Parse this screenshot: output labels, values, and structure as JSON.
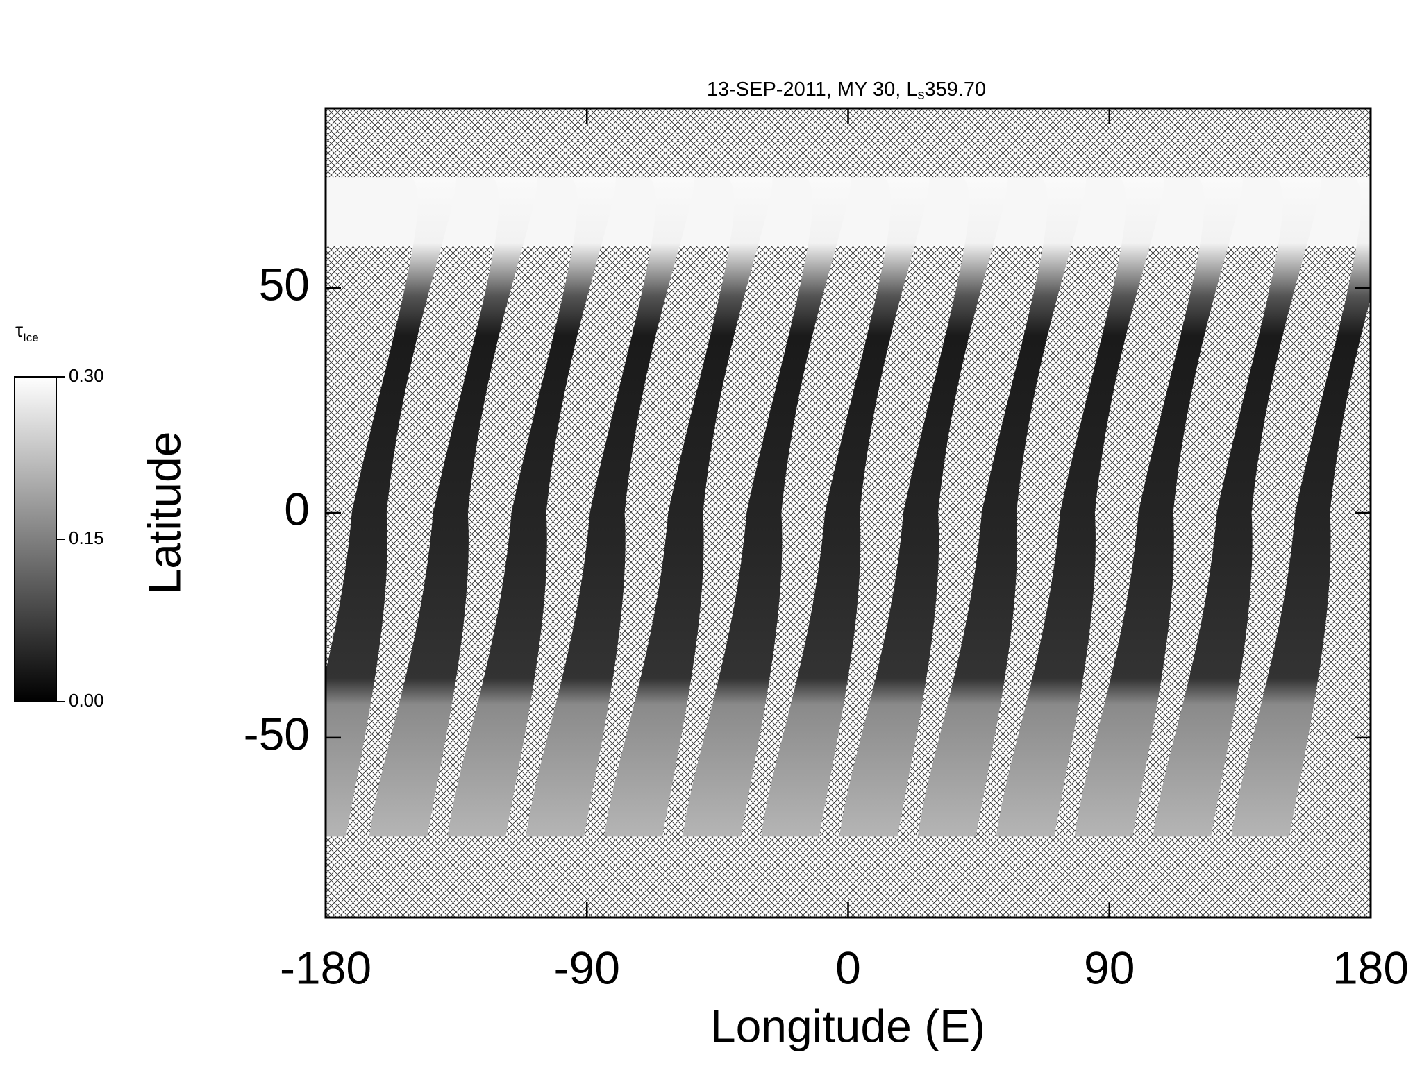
{
  "chart_data": {
    "type": "map",
    "title": "13-SEP-2011, MY 30,  L",
    "title_subscript": "s",
    "title_value": "359.70",
    "xlabel": "Longitude (E)",
    "ylabel": "Latitude",
    "xlim": [
      -180,
      180
    ],
    "xticks": [
      -180,
      -90,
      0,
      90,
      180
    ],
    "ylim": [
      -90,
      90
    ],
    "yticks": [
      -50,
      0,
      50
    ],
    "colorbar_label": "τ",
    "colorbar_label_subscript": "Ice",
    "colorbar_lim": [
      0,
      0.3
    ],
    "colorbar_ticks": [
      {
        "value": 0,
        "label": "0.00"
      },
      {
        "value": 0.15,
        "label": "0.15"
      },
      {
        "value": 0.3,
        "label": "0.30"
      }
    ],
    "swaths": {
      "equator_longitudes": [
        -165,
        -137,
        -110,
        -83,
        -56,
        -29,
        -2,
        25,
        52,
        79,
        106,
        133,
        160
      ]
    }
  }
}
